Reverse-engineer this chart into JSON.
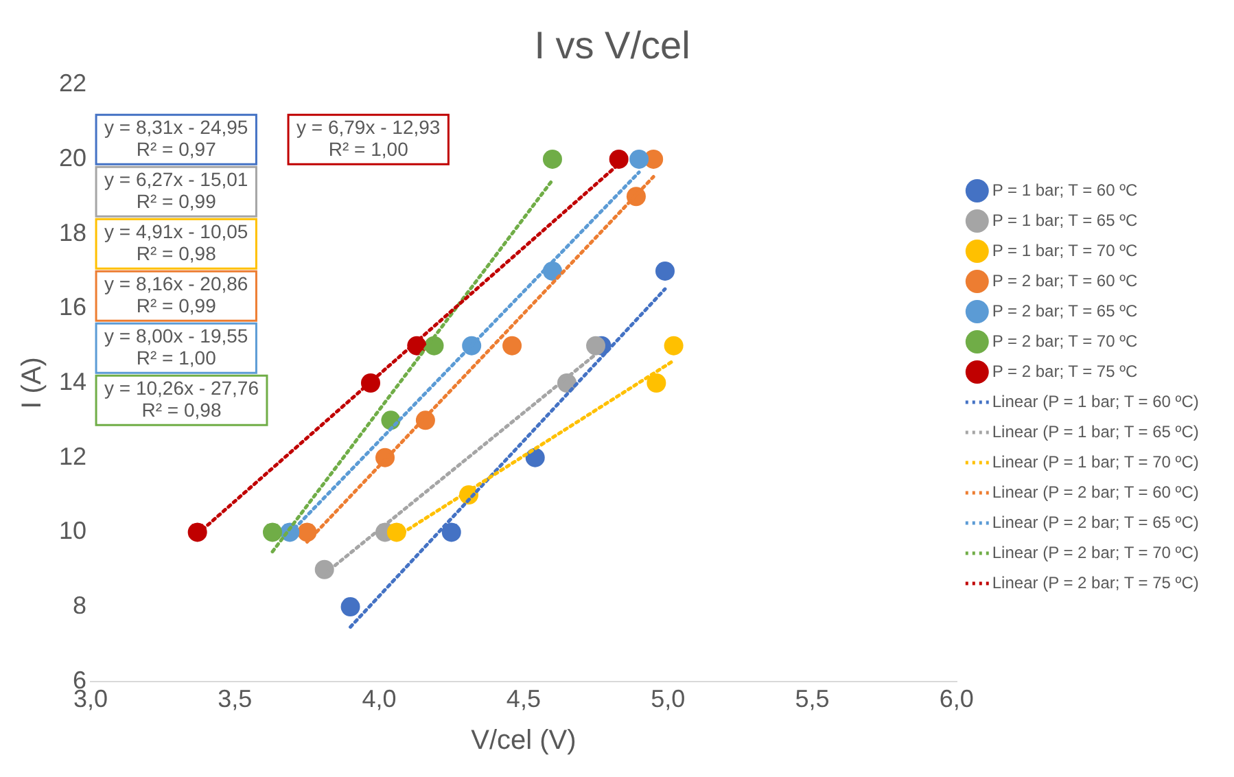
{
  "chart_data": {
    "type": "scatter",
    "title": "I vs V/cel",
    "xlabel": "V/cel (V)",
    "ylabel": "I (A)",
    "xlim": [
      3,
      6
    ],
    "xticks": [
      {
        "value": 3,
        "label": "3,0"
      },
      {
        "value": 3.5,
        "label": "3,5"
      },
      {
        "value": 4,
        "label": "4,0"
      },
      {
        "value": 4.5,
        "label": "4,5"
      },
      {
        "value": 5,
        "label": "5,0"
      },
      {
        "value": 5.5,
        "label": "5,5"
      },
      {
        "value": 6,
        "label": "6,0"
      }
    ],
    "ylim": [
      6,
      22
    ],
    "yticks": [
      6,
      8,
      10,
      12,
      14,
      16,
      18,
      20,
      22
    ],
    "grid": false,
    "legend": "right",
    "series": [
      {
        "name": "P = 1 bar; T = 60 ºC",
        "type": "scatter",
        "marker": "circle",
        "color": "#4472c4",
        "x": [
          3.9,
          4.25,
          4.54,
          4.77,
          4.99
        ],
        "values": [
          8,
          10,
          12,
          15,
          17
        ]
      },
      {
        "name": "P = 1 bar; T = 65 ºC",
        "type": "scatter",
        "marker": "circle",
        "color": "#a5a5a5",
        "x": [
          3.81,
          4.02,
          4.65,
          4.75
        ],
        "values": [
          9,
          10,
          14,
          15
        ]
      },
      {
        "name": "P = 1 bar; T = 70 ºC",
        "type": "scatter",
        "marker": "circle",
        "color": "#ffc000",
        "x": [
          4.06,
          4.31,
          4.96,
          5.02
        ],
        "values": [
          10,
          11,
          14,
          15
        ]
      },
      {
        "name": "P = 2 bar; T = 60 ºC",
        "type": "scatter",
        "marker": "circle",
        "color": "#ed7d31",
        "x": [
          3.75,
          4.02,
          4.16,
          4.46,
          4.89,
          4.95
        ],
        "values": [
          10,
          12,
          13,
          15,
          19,
          20
        ]
      },
      {
        "name": "P = 2 bar; T = 65 ºC",
        "type": "scatter",
        "marker": "circle",
        "color": "#5b9bd5",
        "x": [
          3.69,
          4.32,
          4.6,
          4.9
        ],
        "values": [
          10,
          15,
          17,
          20
        ]
      },
      {
        "name": "P = 2 bar; T = 70 ºC",
        "type": "scatter",
        "marker": "circle",
        "color": "#70ad47",
        "x": [
          3.63,
          4.04,
          4.19,
          4.6
        ],
        "values": [
          10,
          13,
          15,
          20
        ]
      },
      {
        "name": "P = 2 bar; T = 75 ºC",
        "type": "scatter",
        "marker": "circle",
        "color": "#c00000",
        "x": [
          3.37,
          3.97,
          4.13,
          4.83
        ],
        "values": [
          10,
          14,
          15,
          20
        ]
      },
      {
        "name": "Linear (P = 1 bar; T = 60 ºC)",
        "type": "line",
        "marker": "none",
        "line_style": "dotted",
        "color": "#4472c4",
        "x": [
          3.9,
          4.99
        ],
        "values": [
          7.46,
          16.52
        ]
      },
      {
        "name": "Linear (P = 1 bar; T = 65 ºC)",
        "type": "line",
        "marker": "none",
        "line_style": "dotted",
        "color": "#a5a5a5",
        "x": [
          3.81,
          4.75
        ],
        "values": [
          8.88,
          14.77
        ]
      },
      {
        "name": "Linear (P = 1 bar; T = 70 ºC)",
        "type": "line",
        "marker": "none",
        "line_style": "dotted",
        "color": "#ffc000",
        "x": [
          4.06,
          5.02
        ],
        "values": [
          9.88,
          14.6
        ]
      },
      {
        "name": "Linear (P = 2 bar; T = 60 ºC)",
        "type": "line",
        "marker": "none",
        "line_style": "dotted",
        "color": "#ed7d31",
        "x": [
          3.75,
          4.95
        ],
        "values": [
          9.74,
          19.53
        ]
      },
      {
        "name": "Linear (P = 2 bar; T = 65 ºC)",
        "type": "line",
        "marker": "none",
        "line_style": "dotted",
        "color": "#5b9bd5",
        "x": [
          3.69,
          4.9
        ],
        "values": [
          9.97,
          19.65
        ]
      },
      {
        "name": "Linear (P = 2 bar; T = 70 ºC)",
        "type": "line",
        "marker": "none",
        "line_style": "dotted",
        "color": "#70ad47",
        "x": [
          3.63,
          4.6
        ],
        "values": [
          9.48,
          19.44
        ]
      },
      {
        "name": "Linear (P = 2 bar; T = 75 ºC)",
        "type": "line",
        "marker": "none",
        "line_style": "dotted",
        "color": "#c00000",
        "x": [
          3.37,
          4.83
        ],
        "values": [
          9.95,
          19.87
        ]
      }
    ],
    "annotations": [
      "y = 8,31x - 24,95\nR² = 0,97",
      "y = 6,27x - 15,01\nR² = 0,99",
      "y = 4,91x - 10,05\nR² = 0,98",
      "y = 8,16x - 20,86\nR² = 0,99",
      "y = 8,00x - 19,55\nR² = 1,00",
      "y = 10,26x - 27,76\nR² = 0,98",
      "y = 6,79x - 12,93\nR² = 1,00"
    ]
  }
}
